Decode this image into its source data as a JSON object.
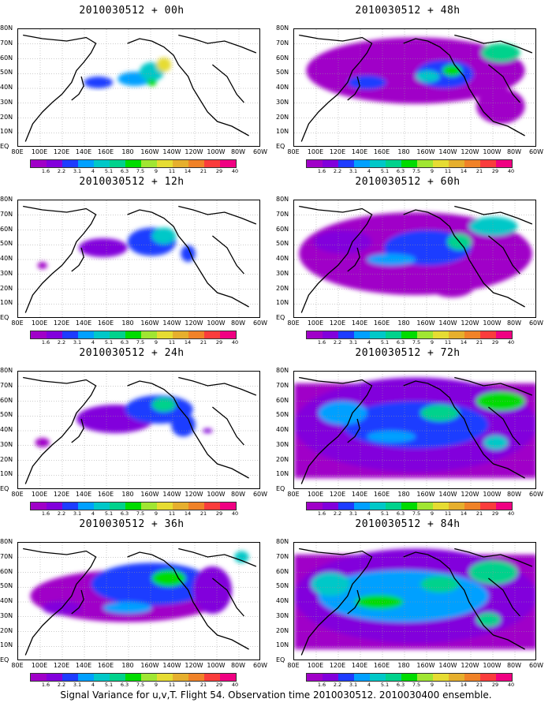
{
  "panels": [
    {
      "title": "2010030512 + 00h",
      "blobs": [
        [
          0.33,
          0.45,
          0.06,
          0.05,
          2
        ],
        [
          0.48,
          0.42,
          0.07,
          0.06,
          3
        ],
        [
          0.55,
          0.36,
          0.05,
          0.08,
          4
        ],
        [
          0.6,
          0.3,
          0.03,
          0.06,
          8
        ],
        [
          0.55,
          0.45,
          0.02,
          0.03,
          6
        ]
      ],
      "bg": 0
    },
    {
      "title": "2010030512 + 12h",
      "blobs": [
        [
          0.35,
          0.4,
          0.1,
          0.08,
          1
        ],
        [
          0.55,
          0.35,
          0.1,
          0.12,
          2
        ],
        [
          0.6,
          0.3,
          0.05,
          0.07,
          4
        ],
        [
          0.7,
          0.45,
          0.03,
          0.07,
          2
        ],
        [
          0.1,
          0.55,
          0.02,
          0.03,
          0
        ]
      ],
      "bg": 0
    },
    {
      "title": "2010030512 + 24h",
      "blobs": [
        [
          0.4,
          0.4,
          0.16,
          0.12,
          1
        ],
        [
          0.58,
          0.32,
          0.14,
          0.12,
          2
        ],
        [
          0.6,
          0.28,
          0.05,
          0.06,
          5
        ],
        [
          0.68,
          0.45,
          0.05,
          0.1,
          2
        ],
        [
          0.1,
          0.6,
          0.03,
          0.04,
          0
        ],
        [
          0.78,
          0.5,
          0.02,
          0.02,
          1
        ]
      ],
      "bg": 0
    },
    {
      "title": "2010030512 + 36h",
      "blobs": [
        [
          0.45,
          0.45,
          0.4,
          0.22,
          0
        ],
        [
          0.55,
          0.35,
          0.25,
          0.18,
          2
        ],
        [
          0.62,
          0.3,
          0.07,
          0.07,
          6
        ],
        [
          0.45,
          0.55,
          0.1,
          0.05,
          3
        ],
        [
          0.18,
          0.55,
          0.08,
          0.06,
          1
        ],
        [
          0.8,
          0.4,
          0.08,
          0.2,
          1
        ],
        [
          0.92,
          0.12,
          0.03,
          0.05,
          4
        ]
      ],
      "bg": 0
    },
    {
      "title": "2010030512 + 48h",
      "blobs": [
        [
          0.5,
          0.35,
          0.45,
          0.28,
          0
        ],
        [
          0.62,
          0.38,
          0.12,
          0.12,
          2
        ],
        [
          0.65,
          0.35,
          0.04,
          0.05,
          6
        ],
        [
          0.85,
          0.2,
          0.08,
          0.08,
          5
        ],
        [
          0.55,
          0.4,
          0.05,
          0.05,
          4
        ],
        [
          0.3,
          0.45,
          0.08,
          0.06,
          2
        ],
        [
          0.85,
          0.65,
          0.1,
          0.15,
          0
        ]
      ],
      "bg": 0
    },
    {
      "title": "2010030512 + 60h",
      "blobs": [
        [
          0.5,
          0.45,
          0.48,
          0.35,
          0
        ],
        [
          0.55,
          0.4,
          0.18,
          0.15,
          2
        ],
        [
          0.68,
          0.35,
          0.05,
          0.07,
          5
        ],
        [
          0.82,
          0.22,
          0.1,
          0.08,
          4
        ],
        [
          0.4,
          0.5,
          0.1,
          0.05,
          3
        ],
        [
          0.2,
          0.35,
          0.12,
          0.1,
          1
        ],
        [
          0.65,
          0.7,
          0.1,
          0.12,
          0
        ]
      ],
      "bg": 0
    },
    {
      "title": "2010030512 + 72h",
      "blobs": [
        [
          0.5,
          0.45,
          0.5,
          0.4,
          1
        ],
        [
          0.5,
          0.45,
          0.3,
          0.2,
          2
        ],
        [
          0.6,
          0.35,
          0.08,
          0.07,
          5
        ],
        [
          0.85,
          0.25,
          0.1,
          0.08,
          6
        ],
        [
          0.83,
          0.6,
          0.05,
          0.06,
          4
        ],
        [
          0.4,
          0.55,
          0.1,
          0.05,
          3
        ],
        [
          0.2,
          0.35,
          0.1,
          0.1,
          3
        ]
      ],
      "bg": 1
    },
    {
      "title": "2010030512 + 84h",
      "blobs": [
        [
          0.5,
          0.45,
          0.5,
          0.4,
          1
        ],
        [
          0.45,
          0.45,
          0.35,
          0.22,
          3
        ],
        [
          0.35,
          0.5,
          0.1,
          0.06,
          6
        ],
        [
          0.6,
          0.35,
          0.08,
          0.07,
          5
        ],
        [
          0.82,
          0.25,
          0.1,
          0.1,
          5
        ],
        [
          0.8,
          0.65,
          0.05,
          0.06,
          5
        ],
        [
          0.15,
          0.35,
          0.08,
          0.1,
          4
        ]
      ],
      "bg": 1
    }
  ],
  "y_labels": [
    "80N",
    "70N",
    "60N",
    "50N",
    "40N",
    "30N",
    "20N",
    "10N",
    "EQ"
  ],
  "x_labels": [
    "80E",
    "100E",
    "120E",
    "140E",
    "160E",
    "180",
    "160W",
    "140W",
    "120W",
    "100W",
    "80W",
    "60W"
  ],
  "colorbar": {
    "labels": [
      "1.6",
      "2.2",
      "3.1",
      "4",
      "5.1",
      "6.3",
      "7.5",
      "9",
      "11",
      "14",
      "21",
      "29",
      "40"
    ],
    "colors": [
      "#a000c8",
      "#8200dc",
      "#1e3cff",
      "#00a0ff",
      "#00c8c8",
      "#00d28c",
      "#00dc00",
      "#a0e632",
      "#e6dc32",
      "#e6af2d",
      "#f08228",
      "#fa3c3c",
      "#f00082"
    ]
  },
  "footer": "Signal Variance for u,v,T. Flight 54. Observation time 2010030512. 2010030400 ensemble."
}
